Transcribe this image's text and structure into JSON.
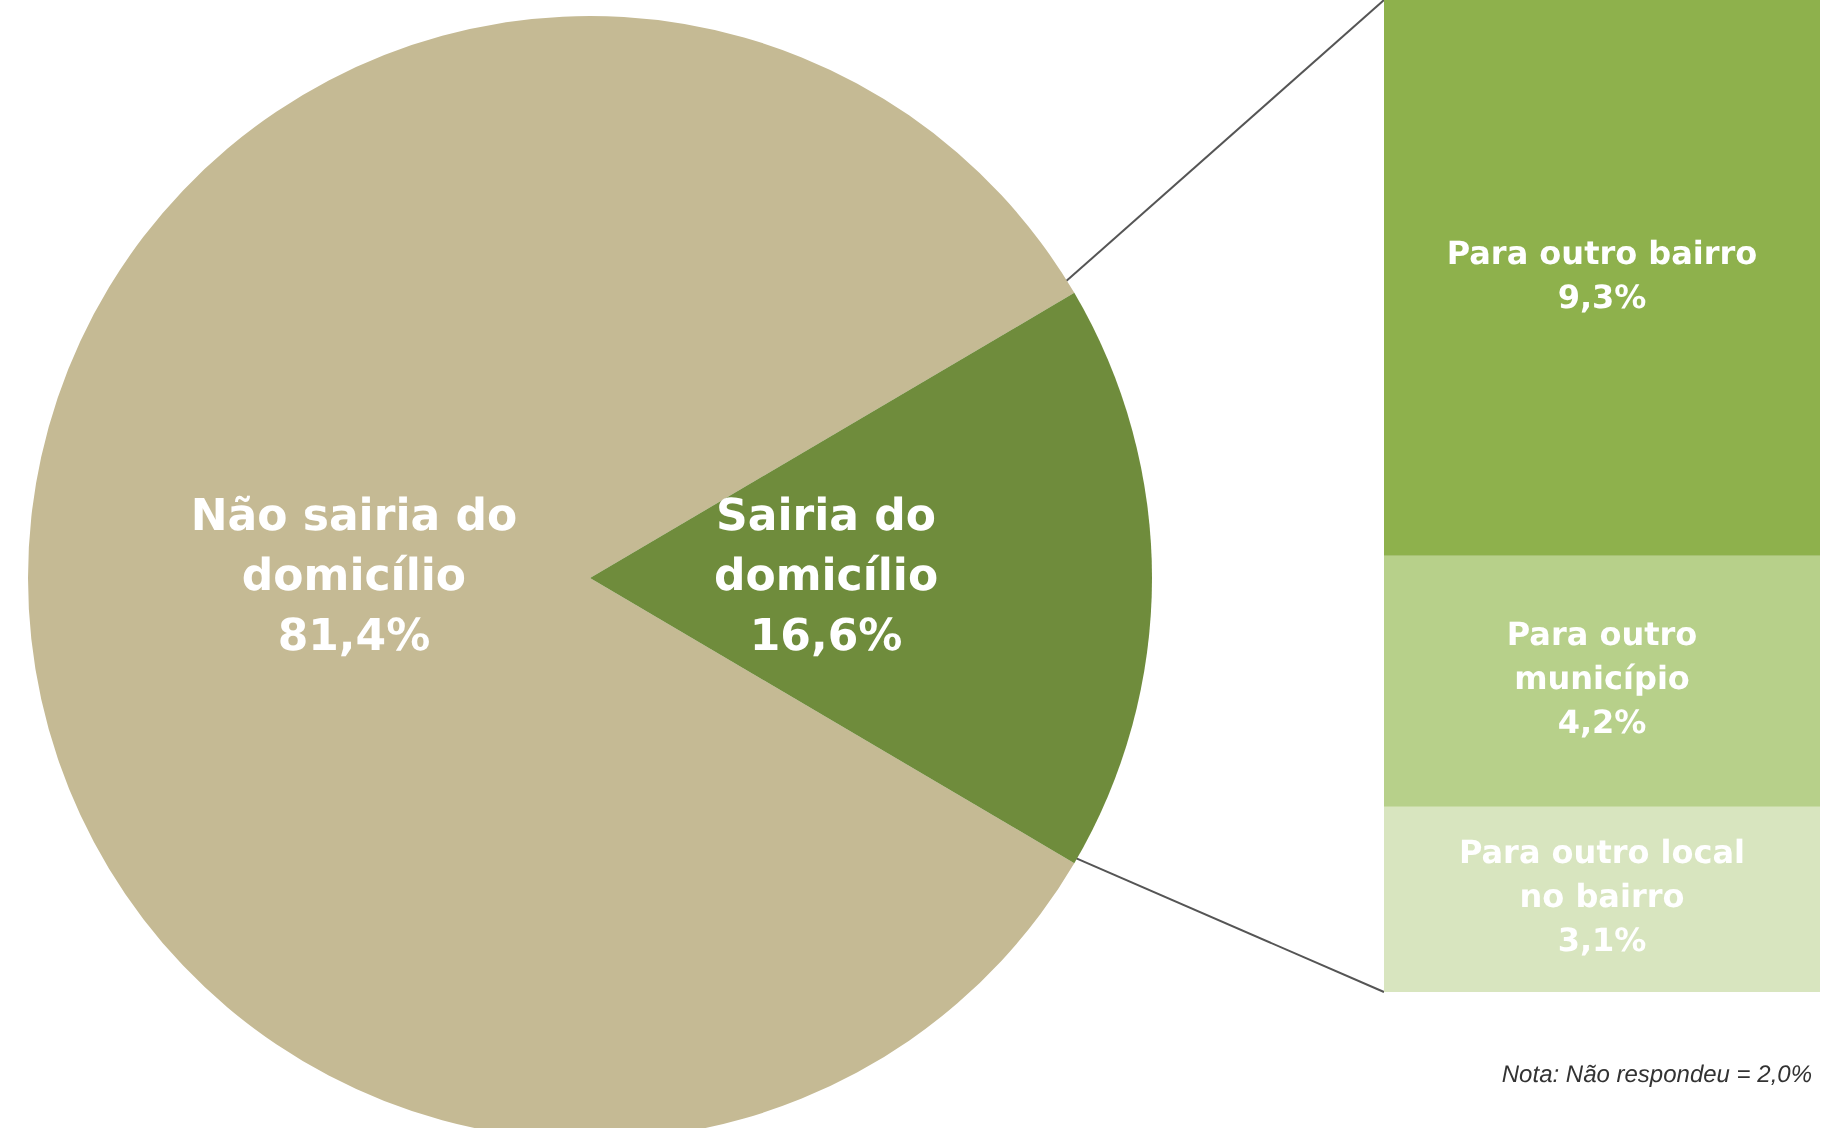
{
  "chart_data": [
    {
      "type": "pie",
      "categories": [
        "Não sairia do domicílio",
        "Sairia do domicílio"
      ],
      "values": [
        81.4,
        16.6
      ],
      "colors": [
        "#c5ba94",
        "#6f8c3c"
      ],
      "value_labels": [
        "81,4%",
        "16,6%"
      ]
    },
    {
      "type": "bar",
      "stacked": true,
      "categories": [
        null
      ],
      "series": [
        {
          "name": "Para outro local no bairro",
          "color": "#d8e5bf",
          "values": [
            3.1
          ],
          "value_labels": [
            "3,1%"
          ]
        },
        {
          "name": "Para outro município",
          "color": "#b7d08a",
          "values": [
            4.2
          ],
          "value_labels": [
            "4,2%"
          ]
        },
        {
          "name": "Para outro bairro",
          "color": "#8eb14c",
          "values": [
            9.3
          ],
          "value_labels": [
            "9,3%"
          ]
        }
      ],
      "annotations": [
        "Nota: Não respondeu = 2,0%"
      ]
    }
  ]
}
